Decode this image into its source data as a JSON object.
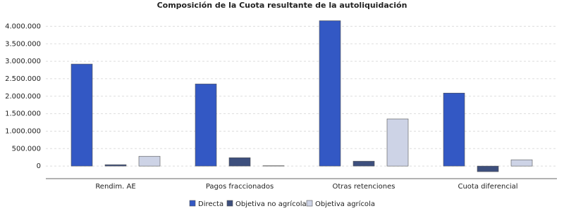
{
  "chart_data": {
    "type": "bar",
    "title": "Composición de la Cuota resultante de la autoliquidación",
    "categories": [
      "Rendim. AE",
      "Pagos fraccionados",
      "Otras retenciones",
      "Cuota diferencial"
    ],
    "series": [
      {
        "name": "Directa",
        "color": "#3358c4",
        "values": [
          2920000,
          2350000,
          4160000,
          2090000
        ]
      },
      {
        "name": "Objetiva no agrícola",
        "color": "#3d4f7d",
        "values": [
          40000,
          240000,
          140000,
          -160000
        ]
      },
      {
        "name": "Objetiva agrícola",
        "color": "#cdd3e6",
        "values": [
          280000,
          10000,
          1350000,
          180000
        ]
      }
    ],
    "ylim": [
      -360000,
      4250000
    ],
    "yticks": [
      0,
      {
        "value": 500000,
        "label": "500.000"
      },
      {
        "value": 1000000,
        "label": "1.000.000"
      },
      {
        "value": 1500000,
        "label": "1.500.000"
      },
      {
        "value": 2000000,
        "label": "2.000.000"
      },
      {
        "value": 2500000,
        "label": "2.500.000"
      },
      {
        "value": 3000000,
        "label": "3.000.000"
      },
      {
        "value": 3500000,
        "label": "3.500.000"
      },
      {
        "value": 4000000,
        "label": "4.000.000"
      }
    ],
    "grid": true
  }
}
